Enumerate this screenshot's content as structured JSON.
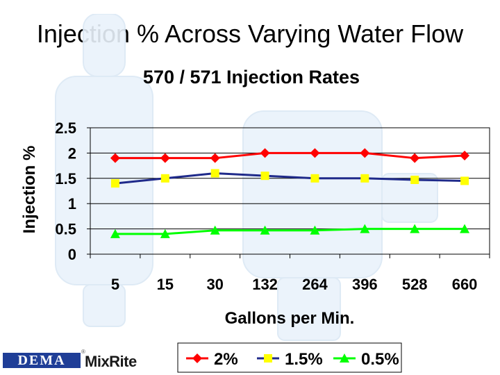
{
  "slide": {
    "title": "Injection % Across Varying Water Flow"
  },
  "branding": {
    "dema_text": "DEMA",
    "mixrite_text": "MixRite",
    "registered_mark": "®",
    "dema_color": "#1f3e97"
  },
  "chart_data": {
    "type": "line",
    "title": "570 / 571 Injection Rates",
    "xlabel": "Gallons per Min.",
    "ylabel": "Injection %",
    "categories": [
      "5",
      "15",
      "30",
      "132",
      "264",
      "396",
      "528",
      "660"
    ],
    "ylim": [
      0,
      2.5
    ],
    "yticks": [
      "0",
      "0.5",
      "1",
      "1.5",
      "2",
      "2.5"
    ],
    "grid": true,
    "legend_position": "bottom",
    "series": [
      {
        "name": "2%",
        "color": "#ff0000",
        "line_color": "#ff0000",
        "marker": "diamond",
        "values": [
          1.9,
          1.9,
          1.9,
          2.0,
          2.0,
          2.0,
          1.9,
          1.95
        ]
      },
      {
        "name": "1.5%",
        "color": "#ffff00",
        "line_color": "#1f2a8a",
        "marker": "square",
        "values": [
          1.4,
          1.5,
          1.6,
          1.55,
          1.5,
          1.5,
          1.47,
          1.45
        ]
      },
      {
        "name": "0.5%",
        "color": "#00ff00",
        "line_color": "#00ff00",
        "marker": "triangle",
        "values": [
          0.4,
          0.4,
          0.47,
          0.47,
          0.47,
          0.5,
          0.5,
          0.5
        ]
      }
    ]
  }
}
